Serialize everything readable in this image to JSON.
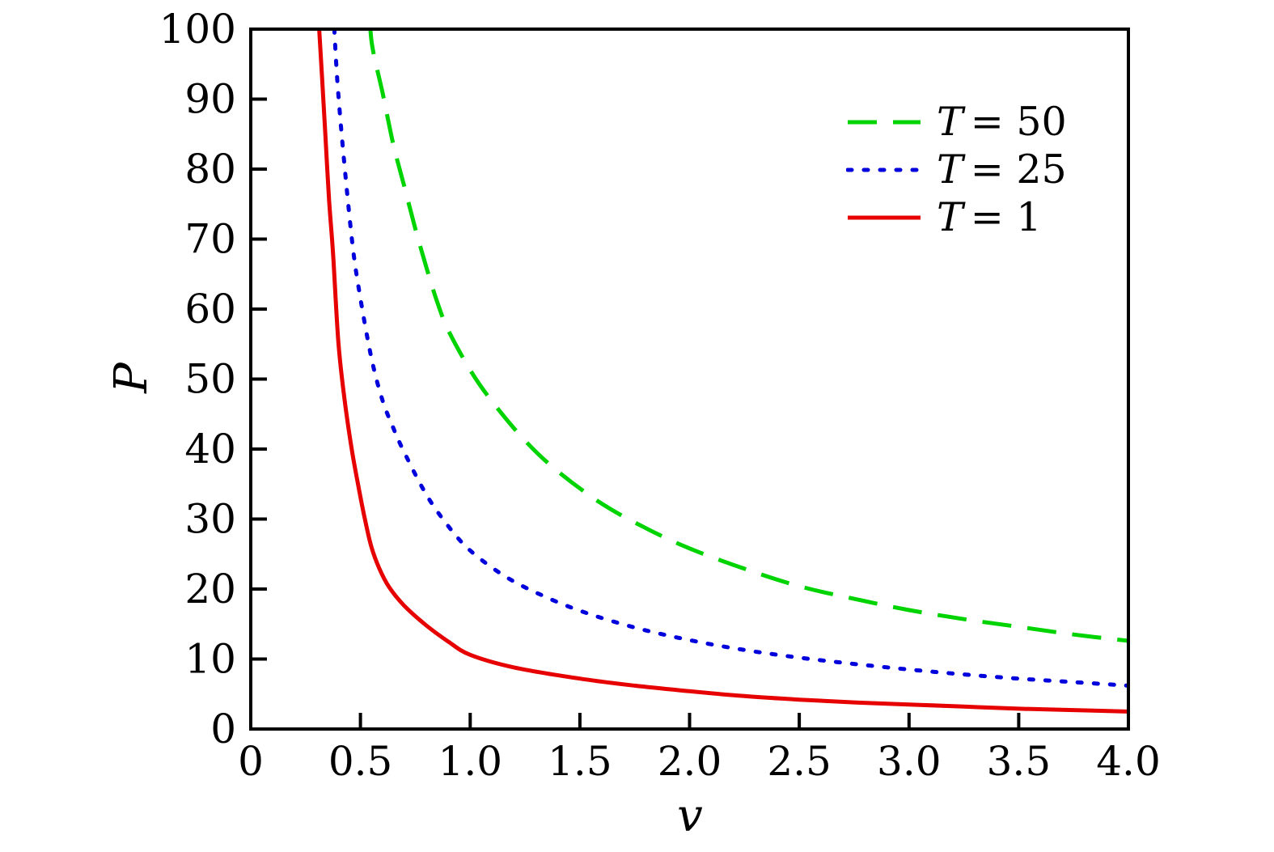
{
  "chart_data": {
    "type": "line",
    "title": "",
    "xlabel": "v",
    "ylabel": "P",
    "xlim": [
      0,
      4
    ],
    "ylim": [
      0,
      100
    ],
    "grid": false,
    "frame": true,
    "tick_direction": "in",
    "xticks": {
      "values": [
        0,
        0.5,
        1.0,
        1.5,
        2.0,
        2.5,
        3.0,
        3.5,
        4.0
      ],
      "labels": [
        "0",
        "0.5",
        "1.0",
        "1.5",
        "2.0",
        "2.5",
        "3.0",
        "3.5",
        "4.0"
      ]
    },
    "yticks": {
      "values": [
        0,
        10,
        20,
        30,
        40,
        50,
        60,
        70,
        80,
        90,
        100
      ],
      "labels": [
        "0",
        "10",
        "20",
        "30",
        "40",
        "50",
        "60",
        "70",
        "80",
        "90",
        "100"
      ]
    },
    "legend": {
      "position": "top-right",
      "frame": false,
      "entries": [
        {
          "symbol": "T",
          "rest": "= 50",
          "label": "T = 50"
        },
        {
          "symbol": "T",
          "rest": "= 25",
          "label": "T = 25"
        },
        {
          "symbol": "T",
          "rest": "= 1",
          "label": "T = 1"
        }
      ]
    },
    "series": [
      {
        "name": "T = 50",
        "temperature": 50,
        "color": "#00d400",
        "style": "dashed",
        "points": [
          [
            0.53,
            107
          ],
          [
            0.545,
            100
          ],
          [
            0.56,
            96.5
          ],
          [
            0.6,
            91
          ],
          [
            0.65,
            83.5
          ],
          [
            0.7,
            77.5
          ],
          [
            0.75,
            71.5
          ],
          [
            0.8,
            66
          ],
          [
            0.85,
            61
          ],
          [
            0.9,
            57
          ],
          [
            1.0,
            51.3
          ],
          [
            1.1,
            46.8
          ],
          [
            1.25,
            41.2
          ],
          [
            1.4,
            36.8
          ],
          [
            1.6,
            32.2
          ],
          [
            1.8,
            28.7
          ],
          [
            2.0,
            25.8
          ],
          [
            2.25,
            22.9
          ],
          [
            2.5,
            20.4
          ],
          [
            2.75,
            18.6
          ],
          [
            3.0,
            17.0
          ],
          [
            3.25,
            15.7
          ],
          [
            3.5,
            14.6
          ],
          [
            3.75,
            13.5
          ],
          [
            4.0,
            12.6
          ]
        ]
      },
      {
        "name": "T = 25",
        "temperature": 25,
        "color": "#0000dd",
        "style": "dotted",
        "points": [
          [
            0.372,
            107
          ],
          [
            0.381,
            100
          ],
          [
            0.395,
            92.5
          ],
          [
            0.42,
            83
          ],
          [
            0.463,
            69.4
          ],
          [
            0.5,
            61.5
          ],
          [
            0.55,
            53
          ],
          [
            0.6,
            47
          ],
          [
            0.65,
            43
          ],
          [
            0.7,
            39.5
          ],
          [
            0.8,
            33.5
          ],
          [
            0.9,
            29
          ],
          [
            1.0,
            25.5
          ],
          [
            1.15,
            22
          ],
          [
            1.3,
            19.5
          ],
          [
            1.5,
            16.9
          ],
          [
            1.75,
            14.5
          ],
          [
            2.0,
            12.7
          ],
          [
            2.25,
            11.3
          ],
          [
            2.5,
            10.2
          ],
          [
            2.75,
            9.3
          ],
          [
            3.0,
            8.5
          ],
          [
            3.25,
            7.8
          ],
          [
            3.5,
            7.2
          ],
          [
            3.75,
            6.7
          ],
          [
            4.0,
            6.2
          ]
        ]
      },
      {
        "name": "T = 1",
        "temperature": 1,
        "color": "#e60000",
        "style": "solid",
        "points": [
          [
            0.3,
            107
          ],
          [
            0.312,
            100
          ],
          [
            0.325,
            93
          ],
          [
            0.34,
            85
          ],
          [
            0.356,
            76
          ],
          [
            0.375,
            68
          ],
          [
            0.4,
            55
          ],
          [
            0.43,
            46.5
          ],
          [
            0.46,
            40
          ],
          [
            0.49,
            34.8
          ],
          [
            0.52,
            30
          ],
          [
            0.55,
            26
          ],
          [
            0.585,
            23
          ],
          [
            0.63,
            20.3
          ],
          [
            0.7,
            17.6
          ],
          [
            0.8,
            14.8
          ],
          [
            0.9,
            12.5
          ],
          [
            1.0,
            10.6
          ],
          [
            1.2,
            8.8
          ],
          [
            1.5,
            7.2
          ],
          [
            1.75,
            6.2
          ],
          [
            2.0,
            5.4
          ],
          [
            2.25,
            4.7
          ],
          [
            2.5,
            4.2
          ],
          [
            2.75,
            3.8
          ],
          [
            3.0,
            3.5
          ],
          [
            3.25,
            3.2
          ],
          [
            3.5,
            2.9
          ],
          [
            3.75,
            2.7
          ],
          [
            4.0,
            2.5
          ]
        ]
      }
    ]
  }
}
